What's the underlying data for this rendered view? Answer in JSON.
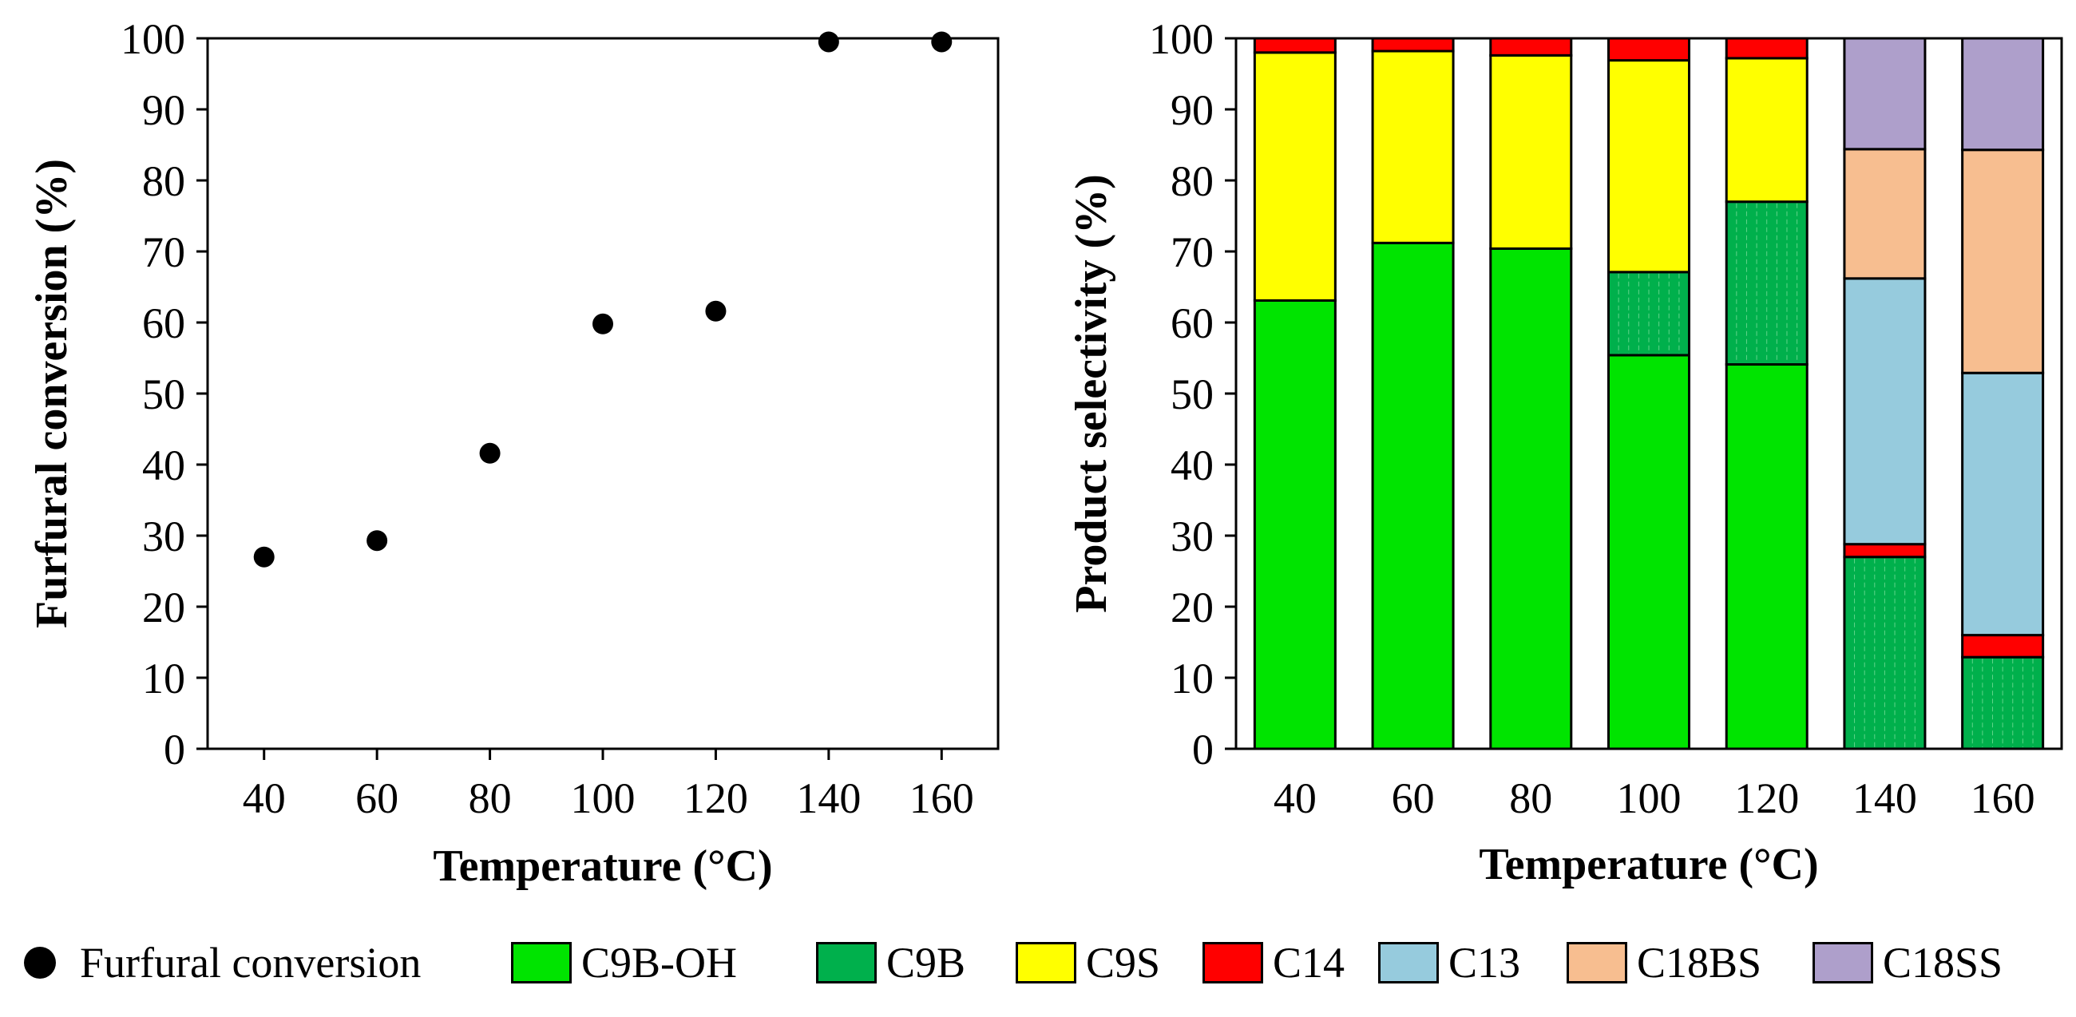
{
  "chart_data": [
    {
      "type": "scatter",
      "title": "",
      "xlabel": "Temperature (°C)",
      "ylabel": "Furfural conversion (%)",
      "xlim": [
        30,
        170
      ],
      "ylim": [
        0,
        100
      ],
      "xticks": [
        40,
        60,
        80,
        100,
        120,
        140,
        160
      ],
      "yticks": [
        0,
        10,
        20,
        30,
        40,
        50,
        60,
        70,
        80,
        90,
        100
      ],
      "series": [
        {
          "name": "Furfural conversion",
          "x": [
            40,
            60,
            80,
            100,
            120,
            140,
            160
          ],
          "y": [
            27,
            29.3,
            41.6,
            59.8,
            61.6,
            99.5,
            99.5
          ]
        }
      ]
    },
    {
      "type": "bar",
      "stacked": true,
      "title": "",
      "xlabel": "Temperature (°C)",
      "ylabel": "Product selectivity (%)",
      "ylim": [
        0,
        100
      ],
      "yticks": [
        0,
        10,
        20,
        30,
        40,
        50,
        60,
        70,
        80,
        90,
        100
      ],
      "categories": [
        "40",
        "60",
        "80",
        "100",
        "120",
        "140",
        "160"
      ],
      "series": [
        {
          "name": "C9B-OH",
          "color": "#00e400",
          "values": [
            63.1,
            71.2,
            70.4,
            55.4,
            54.1,
            0,
            0
          ]
        },
        {
          "name": "C9B",
          "color": "#00b04c",
          "values": [
            0,
            0,
            0,
            11.7,
            22.9,
            27.0,
            12.9
          ]
        },
        {
          "name": "C9S",
          "color": "#ffff00",
          "values": [
            34.9,
            27.0,
            27.2,
            29.8,
            20.2,
            0,
            0
          ]
        },
        {
          "name": "C14",
          "color": "#ff0000",
          "values": [
            2.0,
            1.8,
            2.4,
            3.1,
            2.8,
            1.8,
            3.1
          ]
        },
        {
          "name": "C13",
          "color": "#96cbdd",
          "values": [
            0,
            0,
            0,
            0,
            0,
            37.4,
            36.9
          ]
        },
        {
          "name": "C18BS",
          "color": "#f7be90",
          "values": [
            0,
            0,
            0,
            0,
            0,
            18.2,
            31.4
          ]
        },
        {
          "name": "C18SS",
          "color": "#ae9fcb",
          "values": [
            0,
            0,
            0,
            0,
            0,
            15.6,
            15.7
          ]
        }
      ]
    }
  ],
  "legend": {
    "items": [
      {
        "label": "Furfural conversion",
        "marker": "dot",
        "color": "#000000"
      },
      {
        "label": "C9B-OH",
        "marker": "box",
        "color": "#00e400"
      },
      {
        "label": "C9B",
        "marker": "box",
        "color": "#00b04c"
      },
      {
        "label": "C9S",
        "marker": "box",
        "color": "#ffff00"
      },
      {
        "label": "C14",
        "marker": "box",
        "color": "#ff0000"
      },
      {
        "label": "C13",
        "marker": "box",
        "color": "#96cbdd"
      },
      {
        "label": "C18BS",
        "marker": "box",
        "color": "#f7be90"
      },
      {
        "label": "C18SS",
        "marker": "box",
        "color": "#ae9fcb"
      }
    ]
  }
}
